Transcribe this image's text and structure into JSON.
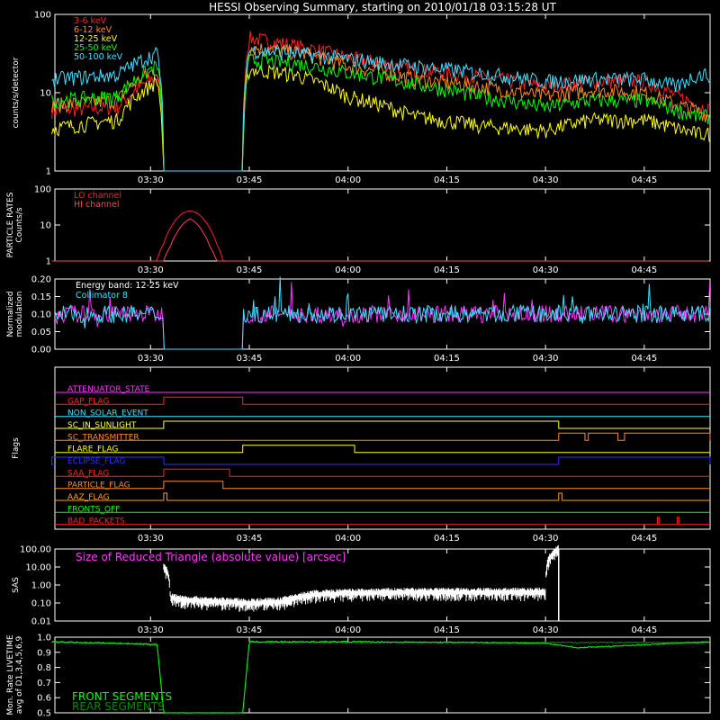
{
  "title": "HESSI Observing Summary, starting on 2010/01/18 03:15:28 UT",
  "colors": {
    "bg": "#000000",
    "axis": "#ffffff",
    "red": "#ff2020",
    "orange": "#ff8c1a",
    "yellow": "#ffff00",
    "green": "#00ff00",
    "cyan": "#40e0ff",
    "magenta": "#ff33ff",
    "blue": "#3030ff",
    "lo": "#ff2020",
    "hi": "#ff4060"
  },
  "chart_data": [
    {
      "id": "counts",
      "type": "line",
      "ylabel": "counts/s/detector",
      "yscale": "log",
      "ylim": [
        1,
        100
      ],
      "yticks": [
        "1",
        "10",
        "100"
      ],
      "xticks": [
        "03:30",
        "03:45",
        "04:00",
        "04:15",
        "04:30",
        "04:45"
      ],
      "x_range": [
        "03:15:28",
        "04:55"
      ],
      "series": [
        {
          "name": "3-6 keV",
          "color": "#ff2020",
          "x": [
            "03:15",
            "03:25",
            "03:31",
            "03:32",
            "03:33",
            "03:44",
            "03:45",
            "03:52",
            "04:00",
            "04:10",
            "04:20",
            "04:30",
            "04:37",
            "04:45",
            "04:50",
            "04:53",
            "04:55"
          ],
          "y": [
            6,
            6.5,
            16,
            0,
            0,
            0,
            50,
            40,
            28,
            20,
            16,
            12,
            14,
            14,
            9,
            7,
            6
          ]
        },
        {
          "name": "6-12 keV",
          "color": "#ff8c1a",
          "x": [
            "03:15",
            "03:25",
            "03:31",
            "03:32",
            "03:33",
            "03:44",
            "03:45",
            "03:52",
            "04:00",
            "04:10",
            "04:20",
            "04:30",
            "04:37",
            "04:45",
            "04:50",
            "04:53",
            "04:55"
          ],
          "y": [
            7,
            8,
            20,
            0,
            0,
            0,
            38,
            33,
            22,
            15,
            12,
            9,
            11,
            10,
            7,
            6,
            5
          ]
        },
        {
          "name": "12-25 keV",
          "color": "#ffff00",
          "x": [
            "03:15",
            "03:25",
            "03:31",
            "03:32",
            "03:33",
            "03:44",
            "03:45",
            "03:52",
            "04:00",
            "04:10",
            "04:20",
            "04:30",
            "04:37",
            "04:45",
            "04:50",
            "04:53",
            "04:55"
          ],
          "y": [
            3.5,
            4.5,
            14,
            0,
            0,
            0,
            20,
            17,
            9,
            5,
            3.8,
            3.3,
            4.5,
            4.5,
            3.5,
            3,
            3
          ]
        },
        {
          "name": "25-50 keV",
          "color": "#00ff00",
          "x": [
            "03:15",
            "03:25",
            "03:31",
            "03:32",
            "03:33",
            "03:44",
            "03:45",
            "03:52",
            "04:00",
            "04:10",
            "04:20",
            "04:30",
            "04:37",
            "04:45",
            "04:50",
            "04:53",
            "04:55"
          ],
          "y": [
            8,
            9,
            22,
            0,
            0,
            0,
            26,
            24,
            18,
            13,
            9,
            6.5,
            8,
            8,
            6,
            5,
            5
          ]
        },
        {
          "name": "50-100 keV",
          "color": "#40e0ff",
          "x": [
            "03:15",
            "03:25",
            "03:31",
            "03:32",
            "03:33",
            "03:44",
            "03:45",
            "03:52",
            "04:00",
            "04:10",
            "04:20",
            "04:30",
            "04:37",
            "04:45",
            "04:50",
            "04:53",
            "04:55"
          ],
          "y": [
            15,
            17,
            32,
            0,
            0,
            0,
            35,
            32,
            27,
            22,
            18,
            14,
            15,
            15,
            12,
            17,
            17
          ]
        }
      ]
    },
    {
      "id": "particle",
      "type": "line",
      "ylabel_lines": [
        "PARTICLE RATES",
        "Counts/s"
      ],
      "yscale": "log",
      "ylim": [
        1,
        100
      ],
      "yticks": [
        "1",
        "10",
        "100"
      ],
      "xticks": [
        "03:30",
        "03:45",
        "04:00",
        "04:15",
        "04:30",
        "04:45"
      ],
      "series": [
        {
          "name": "LO channel",
          "color": "#ff2020",
          "x": [
            "03:15",
            "03:31",
            "03:32",
            "03:33",
            "03:34",
            "03:35",
            "03:36",
            "03:37",
            "03:38",
            "03:39",
            "03:40",
            "03:41",
            "04:55"
          ],
          "y": [
            1,
            1,
            3,
            8,
            15,
            22,
            25,
            22,
            15,
            8,
            3,
            1,
            1
          ]
        },
        {
          "name": "HI channel",
          "color": "#ff4060",
          "x": [
            "03:15",
            "03:32",
            "03:33",
            "03:34",
            "03:35",
            "03:36",
            "03:37",
            "03:38",
            "03:39",
            "03:40",
            "04:55"
          ],
          "y": [
            1,
            1,
            2.5,
            6,
            11,
            15,
            11,
            6,
            2.5,
            1,
            1
          ]
        }
      ]
    },
    {
      "id": "modulation",
      "type": "line",
      "ylabel_lines": [
        "Normalized",
        "modulation"
      ],
      "ylim": [
        0,
        0.2
      ],
      "yticks": [
        "0.00",
        "0.05",
        "0.10",
        "0.15",
        "0.20"
      ],
      "xticks": [
        "03:30",
        "03:45",
        "04:00",
        "04:15",
        "04:30",
        "04:45"
      ],
      "annotation": "Energy band: 12-25 keV",
      "series": [
        {
          "name": "Collimator 8",
          "color": "#40e0ff",
          "baseline": 0.1,
          "gaps": [
            [
              "03:32",
              "03:44"
            ]
          ]
        },
        {
          "name": "",
          "color": "#ff33ff",
          "baseline": 0.1,
          "gaps": [
            [
              "03:32",
              "03:44"
            ]
          ]
        }
      ]
    },
    {
      "id": "flags",
      "type": "step",
      "ylabel": "Flags",
      "xticks": [
        "03:30",
        "03:45",
        "04:00",
        "04:15",
        "04:30",
        "04:45"
      ],
      "flags": [
        {
          "name": "ATTENUATOR_STATE",
          "color": "#ff33ff",
          "on": []
        },
        {
          "name": "GAP_FLAG",
          "color": "#ff2020",
          "on": [
            [
              "03:32",
              "03:44"
            ]
          ]
        },
        {
          "name": "NON_SOLAR_EVENT",
          "color": "#40e0ff",
          "on": []
        },
        {
          "name": "SC_IN_SUNLIGHT",
          "color": "#ffff40",
          "on": [
            [
              "03:32",
              "04:32"
            ]
          ]
        },
        {
          "name": "SC_TRANSMITTER",
          "color": "#ff8c1a",
          "on": [
            [
              "04:32",
              "04:36"
            ],
            [
              "04:36:30",
              "04:41"
            ],
            [
              "04:42",
              "04:55"
            ]
          ]
        },
        {
          "name": "FLARE_FLAG",
          "color": "#ffff00",
          "on": [
            [
              "03:44",
              "04:01"
            ]
          ]
        },
        {
          "name": "ECLIPSE_FLAG",
          "color": "#3030ff",
          "on": [
            [
              "03:15",
              "03:32"
            ],
            [
              "04:32",
              "04:55"
            ]
          ]
        },
        {
          "name": "SAA_FLAG",
          "color": "#ff2020",
          "on": [
            [
              "03:32",
              "03:42"
            ]
          ]
        },
        {
          "name": "PARTICLE_FLAG",
          "color": "#ff8c1a",
          "on": [
            [
              "03:32",
              "03:41"
            ]
          ]
        },
        {
          "name": "AAZ_FLAG",
          "color": "#ffa020",
          "on": [
            [
              "03:32",
              "03:32:30"
            ],
            [
              "04:32",
              "04:32:30"
            ]
          ]
        },
        {
          "name": "FRONTS_OFF",
          "color": "#00ff00",
          "on": []
        },
        {
          "name": "BAD_PACKETS",
          "color": "#ff2020",
          "on": [
            [
              "04:47",
              "04:47:15"
            ],
            [
              "04:50",
              "04:50:15"
            ]
          ]
        }
      ]
    },
    {
      "id": "sas",
      "type": "line",
      "ylabel": "SAS",
      "yscale": "log",
      "ylim": [
        0.01,
        100
      ],
      "yticks": [
        "0.01",
        "0.10",
        "1.00",
        "10.00",
        "100.00"
      ],
      "xticks": [
        "03:30",
        "03:45",
        "04:00",
        "04:15",
        "04:30",
        "04:45"
      ],
      "annotation": "Size of Reduced Triangle (absolute value) [arcsec]",
      "series": [
        {
          "name": "",
          "color": "#ffffff",
          "x": [
            "03:32",
            "03:33",
            "03:35",
            "03:40",
            "03:45",
            "03:50",
            "03:55",
            "04:00",
            "04:10",
            "04:20",
            "04:30",
            "04:32"
          ],
          "y": [
            10,
            0.2,
            0.15,
            0.12,
            0.1,
            0.12,
            0.3,
            0.35,
            0.4,
            0.4,
            0.4,
            100
          ]
        }
      ]
    },
    {
      "id": "livetime",
      "type": "line",
      "ylabel_lines": [
        "Mon. Rate LIVETIME",
        "avg of D1,3,4,5,6,9"
      ],
      "ylim": [
        0.5,
        1.0
      ],
      "yticks": [
        "0.5",
        "0.6",
        "0.7",
        "0.8",
        "0.9",
        "1.0"
      ],
      "xticks": [],
      "legend": [
        "FRONT SEGMENTS",
        "REAR SEGMENTS"
      ],
      "series": [
        {
          "name": "FRONT SEGMENTS",
          "color": "#00ff00",
          "x": [
            "03:15",
            "03:25",
            "03:31",
            "03:32",
            "03:44",
            "03:45",
            "04:00",
            "04:20",
            "04:30",
            "04:35",
            "04:45",
            "04:55"
          ],
          "y": [
            0.97,
            0.96,
            0.95,
            0.5,
            0.5,
            0.97,
            0.97,
            0.965,
            0.96,
            0.93,
            0.95,
            0.97
          ]
        },
        {
          "name": "REAR SEGMENTS",
          "color": "#008800",
          "x": [
            "03:15",
            "03:31",
            "03:32",
            "03:44",
            "03:45",
            "04:55"
          ],
          "y": [
            0.965,
            0.955,
            0.5,
            0.5,
            0.965,
            0.965
          ]
        }
      ]
    }
  ]
}
